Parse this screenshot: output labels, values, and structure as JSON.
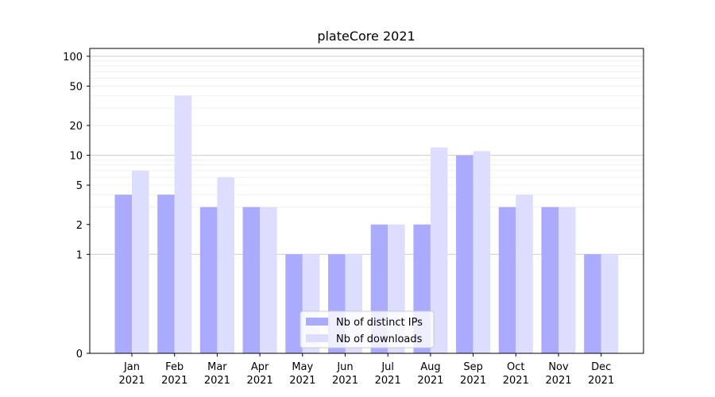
{
  "chart_data": {
    "type": "bar",
    "title": "plateCore 2021",
    "xlabel": "",
    "ylabel": "",
    "yscale": "symlog",
    "ylim": [
      0,
      120
    ],
    "yticks": [
      0,
      1,
      2,
      5,
      10,
      20,
      50,
      100
    ],
    "ytick_labels": [
      "0",
      "1",
      "2",
      "5",
      "10",
      "20",
      "50",
      "100"
    ],
    "grid": "y-major-and-minor",
    "legend_position": "bottom-center",
    "categories": [
      {
        "month": "Jan",
        "year": "2021"
      },
      {
        "month": "Feb",
        "year": "2021"
      },
      {
        "month": "Mar",
        "year": "2021"
      },
      {
        "month": "Apr",
        "year": "2021"
      },
      {
        "month": "May",
        "year": "2021"
      },
      {
        "month": "Jun",
        "year": "2021"
      },
      {
        "month": "Jul",
        "year": "2021"
      },
      {
        "month": "Aug",
        "year": "2021"
      },
      {
        "month": "Sep",
        "year": "2021"
      },
      {
        "month": "Oct",
        "year": "2021"
      },
      {
        "month": "Nov",
        "year": "2021"
      },
      {
        "month": "Dec",
        "year": "2021"
      }
    ],
    "series": [
      {
        "name": "Nb of distinct IPs",
        "color": "#aaaaff",
        "values": [
          4,
          4,
          3,
          3,
          1,
          1,
          2,
          2,
          10,
          3,
          3,
          1
        ]
      },
      {
        "name": "Nb of downloads",
        "color": "#ddddff",
        "values": [
          7,
          40,
          6,
          3,
          1,
          1,
          2,
          12,
          11,
          4,
          3,
          1
        ]
      }
    ]
  }
}
